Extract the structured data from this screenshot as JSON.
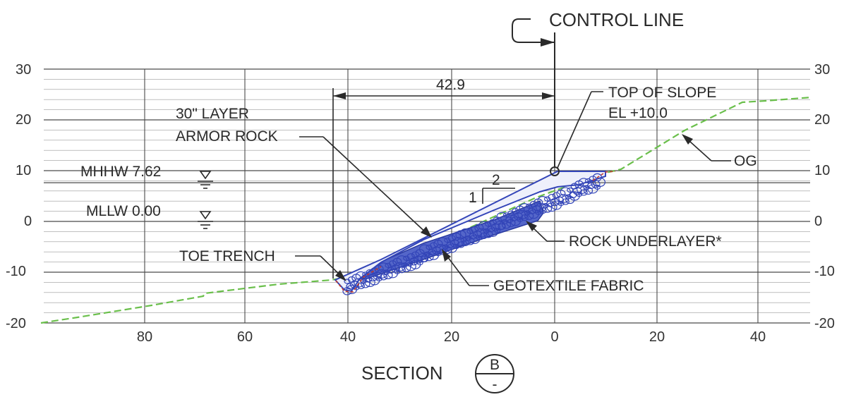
{
  "title": "CONTROL LINE",
  "section_label": "SECTION",
  "section_symbol": {
    "top": "B",
    "bottom": "-"
  },
  "y_axis": {
    "ticks": [
      "30",
      "20",
      "10",
      "0",
      "-10",
      "-20"
    ],
    "range": [
      -20,
      30
    ]
  },
  "x_axis": {
    "ticks": [
      "80",
      "60",
      "40",
      "20",
      "0",
      "20",
      "40"
    ]
  },
  "dimension": {
    "value": "42.9"
  },
  "slope_ratio": {
    "run": "2",
    "rise": "1"
  },
  "water_levels": [
    {
      "label": "MHHW 7.62",
      "elevation": 7.62
    },
    {
      "label": "MLLW 0.00",
      "elevation": 0.0
    }
  ],
  "callouts": {
    "top_of_slope_line1": "TOP OF SLOPE",
    "top_of_slope_line2": "EL +10.0",
    "armor_line1": "30\" LAYER",
    "armor_line2": "ARMOR ROCK",
    "og": "OG",
    "rock_underlayer": "ROCK UNDERLAYER*",
    "toe_trench": "TOE TRENCH",
    "geotextile": "GEOTEXTILE FABRIC"
  },
  "colors": {
    "grid_major": "#4a4a4a",
    "grid_minor": "#9a9a9a",
    "original_ground": "#6abf4b",
    "armor_rock": "#3345b8",
    "geotextile": "#c0392b",
    "ink": "#2a2a2a"
  }
}
